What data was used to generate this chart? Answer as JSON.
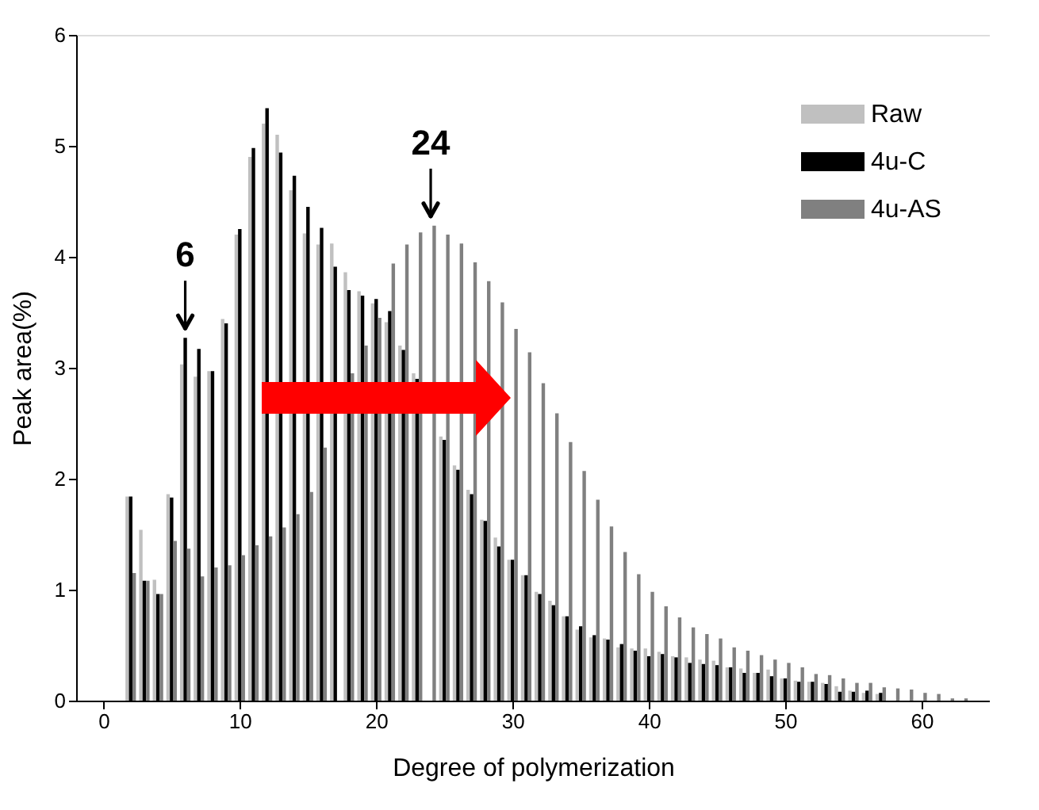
{
  "chart_data": {
    "type": "bar",
    "xlabel": "Degree of polymerization",
    "ylabel": "Peak area(%)",
    "x": [
      2,
      3,
      4,
      5,
      6,
      7,
      8,
      9,
      10,
      11,
      12,
      13,
      14,
      15,
      16,
      17,
      18,
      19,
      20,
      21,
      22,
      23,
      24,
      25,
      26,
      27,
      28,
      29,
      30,
      31,
      32,
      33,
      34,
      35,
      36,
      37,
      38,
      39,
      40,
      41,
      42,
      43,
      44,
      45,
      46,
      47,
      48,
      49,
      50,
      51,
      52,
      53,
      54,
      55,
      56,
      57,
      58,
      59,
      60,
      61,
      62,
      63
    ],
    "series": [
      {
        "name": "Raw",
        "color": "#c0c0c0",
        "values": [
          1.84,
          1.54,
          1.09,
          1.86,
          3.03,
          2.92,
          2.97,
          3.44,
          4.2,
          4.9,
          5.2,
          5.1,
          4.6,
          4.21,
          4.11,
          4.12,
          3.86,
          3.69,
          3.58,
          3.41,
          3.2,
          2.95,
          null,
          2.38,
          2.12,
          1.9,
          1.63,
          1.47,
          1.27,
          1.13,
          0.98,
          0.9,
          0.76,
          0.64,
          0.57,
          0.56,
          0.48,
          0.47,
          0.47,
          0.44,
          0.4,
          0.39,
          0.37,
          0.36,
          0.3,
          0.29,
          0.25,
          0.28,
          0.2,
          0.18,
          0.17,
          0.16,
          0.13,
          0.09,
          0.07,
          0.06,
          null,
          null,
          null,
          null,
          null,
          null
        ]
      },
      {
        "name": "4u-C",
        "color": "#000000",
        "values": [
          1.84,
          1.08,
          0.96,
          1.83,
          3.27,
          3.17,
          2.97,
          3.4,
          4.25,
          4.98,
          5.34,
          4.94,
          4.73,
          4.45,
          4.26,
          3.91,
          3.7,
          3.65,
          3.62,
          3.51,
          3.16,
          2.9,
          null,
          2.35,
          2.08,
          1.86,
          1.62,
          1.39,
          1.27,
          1.13,
          0.96,
          0.86,
          0.76,
          0.67,
          0.59,
          0.55,
          0.51,
          0.45,
          0.4,
          0.42,
          0.39,
          0.34,
          0.33,
          0.32,
          0.3,
          0.25,
          0.25,
          0.22,
          0.2,
          0.17,
          0.17,
          0.15,
          0.08,
          0.08,
          0.09,
          0.07,
          null,
          null,
          null,
          null,
          null,
          null
        ]
      },
      {
        "name": "4u-AS",
        "color": "#808080",
        "values": [
          1.15,
          1.08,
          0.96,
          1.44,
          1.37,
          1.12,
          1.2,
          1.22,
          1.31,
          1.4,
          1.48,
          1.56,
          1.68,
          1.88,
          2.28,
          null,
          2.95,
          3.2,
          3.45,
          3.94,
          4.11,
          4.22,
          4.28,
          4.2,
          4.12,
          3.95,
          3.78,
          3.59,
          3.35,
          3.14,
          2.86,
          2.59,
          2.33,
          2.07,
          1.81,
          1.57,
          1.34,
          1.14,
          0.98,
          0.85,
          0.75,
          0.66,
          0.6,
          0.56,
          0.48,
          0.45,
          0.41,
          0.37,
          0.34,
          0.3,
          0.24,
          0.23,
          0.2,
          0.16,
          0.16,
          0.12,
          0.11,
          0.1,
          0.07,
          0.06,
          0.02,
          0.02
        ]
      }
    ],
    "xlim": [
      -2,
      65
    ],
    "xticks": [
      0,
      10,
      20,
      30,
      40,
      50,
      60
    ],
    "ylim": [
      0,
      6
    ],
    "yticks": [
      {
        "value": 0,
        "label": "0"
      },
      {
        "value": 1,
        "label": "1"
      },
      {
        "value": 2,
        "label": "2"
      },
      {
        "value": 3,
        "label": "3"
      },
      {
        "value": 4,
        "label": "4"
      },
      {
        "value": 5,
        "label": "5"
      },
      {
        "value": 6,
        "label": "6"
      }
    ],
    "annotations": [
      {
        "text": "6",
        "x": 6,
        "y": 3.27
      },
      {
        "text": "24",
        "x": 24,
        "y": 4.28
      }
    ],
    "legend": "top right",
    "grid": false
  }
}
